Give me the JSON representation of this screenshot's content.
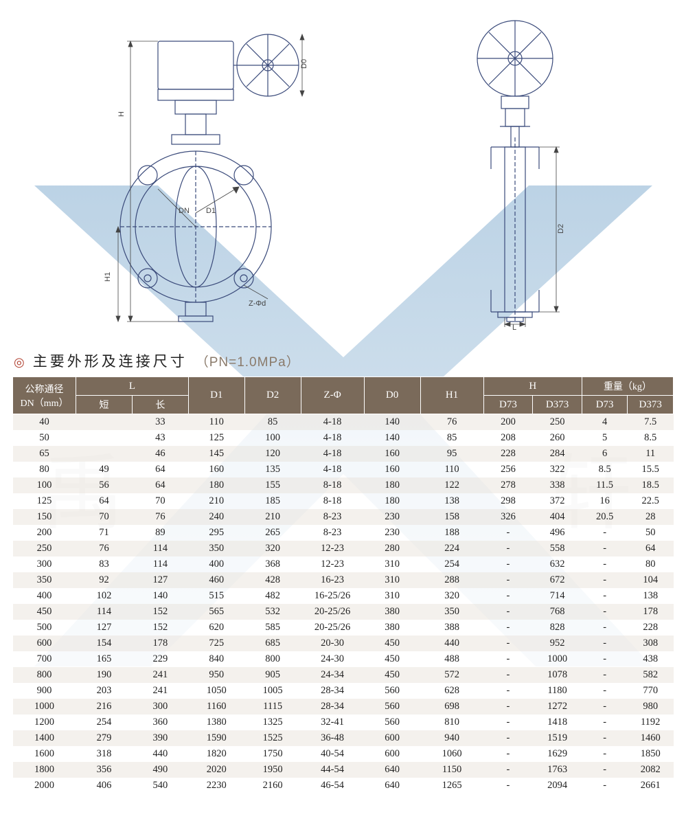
{
  "section": {
    "bullet": "◎",
    "title": "主要外形及连接尺寸",
    "subtitle": "（PN=1.0MPa）"
  },
  "diagram_labels": {
    "H": "H",
    "H1": "H1",
    "DN": "DN",
    "D1": "D1",
    "D0": "D0",
    "Zphid": "Z-Φd",
    "D2": "D2",
    "L": "L"
  },
  "table": {
    "header_row1": {
      "dn_line1": "公称通径",
      "dn_line2": "DN（mm）",
      "L": "L",
      "D1": "D1",
      "D2": "D2",
      "Zphi": "Z-Φ",
      "D0": "D0",
      "H1": "H1",
      "H": "H",
      "weight": "重量（kg）"
    },
    "header_row2": {
      "short": "短",
      "long": "长",
      "D73a": "D73",
      "D373a": "D373",
      "D73b": "D73",
      "D373b": "D373"
    },
    "columns_widths_pct": [
      9,
      8,
      8,
      8,
      8,
      9,
      8,
      9,
      7,
      7,
      6.5,
      6.5
    ],
    "rows": [
      [
        "40",
        "",
        "33",
        "110",
        "85",
        "4-18",
        "140",
        "76",
        "200",
        "250",
        "4",
        "7.5"
      ],
      [
        "50",
        "",
        "43",
        "125",
        "100",
        "4-18",
        "140",
        "85",
        "208",
        "260",
        "5",
        "8.5"
      ],
      [
        "65",
        "",
        "46",
        "145",
        "120",
        "4-18",
        "160",
        "95",
        "228",
        "284",
        "6",
        "11"
      ],
      [
        "80",
        "49",
        "64",
        "160",
        "135",
        "4-18",
        "160",
        "110",
        "256",
        "322",
        "8.5",
        "15.5"
      ],
      [
        "100",
        "56",
        "64",
        "180",
        "155",
        "8-18",
        "180",
        "122",
        "278",
        "338",
        "11.5",
        "18.5"
      ],
      [
        "125",
        "64",
        "70",
        "210",
        "185",
        "8-18",
        "180",
        "138",
        "298",
        "372",
        "16",
        "22.5"
      ],
      [
        "150",
        "70",
        "76",
        "240",
        "210",
        "8-23",
        "230",
        "158",
        "326",
        "404",
        "20.5",
        "28"
      ],
      [
        "200",
        "71",
        "89",
        "295",
        "265",
        "8-23",
        "230",
        "188",
        "-",
        "496",
        "-",
        "50"
      ],
      [
        "250",
        "76",
        "114",
        "350",
        "320",
        "12-23",
        "280",
        "224",
        "-",
        "558",
        "-",
        "64"
      ],
      [
        "300",
        "83",
        "114",
        "400",
        "368",
        "12-23",
        "310",
        "254",
        "-",
        "632",
        "-",
        "80"
      ],
      [
        "350",
        "92",
        "127",
        "460",
        "428",
        "16-23",
        "310",
        "288",
        "-",
        "672",
        "-",
        "104"
      ],
      [
        "400",
        "102",
        "140",
        "515",
        "482",
        "16-25/26",
        "310",
        "320",
        "-",
        "714",
        "-",
        "138"
      ],
      [
        "450",
        "114",
        "152",
        "565",
        "532",
        "20-25/26",
        "380",
        "350",
        "-",
        "768",
        "-",
        "178"
      ],
      [
        "500",
        "127",
        "152",
        "620",
        "585",
        "20-25/26",
        "380",
        "388",
        "-",
        "828",
        "-",
        "228"
      ],
      [
        "600",
        "154",
        "178",
        "725",
        "685",
        "20-30",
        "450",
        "440",
        "-",
        "952",
        "-",
        "308"
      ],
      [
        "700",
        "165",
        "229",
        "840",
        "800",
        "24-30",
        "450",
        "488",
        "-",
        "1000",
        "-",
        "438"
      ],
      [
        "800",
        "190",
        "241",
        "950",
        "905",
        "24-34",
        "450",
        "572",
        "-",
        "1078",
        "-",
        "582"
      ],
      [
        "900",
        "203",
        "241",
        "1050",
        "1005",
        "28-34",
        "560",
        "628",
        "-",
        "1180",
        "-",
        "770"
      ],
      [
        "1000",
        "216",
        "300",
        "1160",
        "1115",
        "28-34",
        "560",
        "698",
        "-",
        "1272",
        "-",
        "980"
      ],
      [
        "1200",
        "254",
        "360",
        "1380",
        "1325",
        "32-41",
        "560",
        "810",
        "-",
        "1418",
        "-",
        "1192"
      ],
      [
        "1400",
        "279",
        "390",
        "1590",
        "1525",
        "36-48",
        "600",
        "940",
        "-",
        "1519",
        "-",
        "1460"
      ],
      [
        "1600",
        "318",
        "440",
        "1820",
        "1750",
        "40-54",
        "600",
        "1060",
        "-",
        "1629",
        "-",
        "1850"
      ],
      [
        "1800",
        "356",
        "490",
        "2020",
        "1950",
        "44-54",
        "640",
        "1150",
        "-",
        "1763",
        "-",
        "2082"
      ],
      [
        "2000",
        "406",
        "540",
        "2230",
        "2160",
        "46-54",
        "640",
        "1265",
        "-",
        "2094",
        "-",
        "2661"
      ]
    ]
  },
  "colors": {
    "header_bg": "#7a6a5a",
    "header_fg": "#ffffff",
    "row_odd_bg": "#f2eeea",
    "row_even_bg": "#ffffff",
    "bullet": "#b04030",
    "subtitle": "#8a7a6a",
    "watermark_fill": "#7fa8c9",
    "diagram_stroke": "#3a4a7a"
  }
}
